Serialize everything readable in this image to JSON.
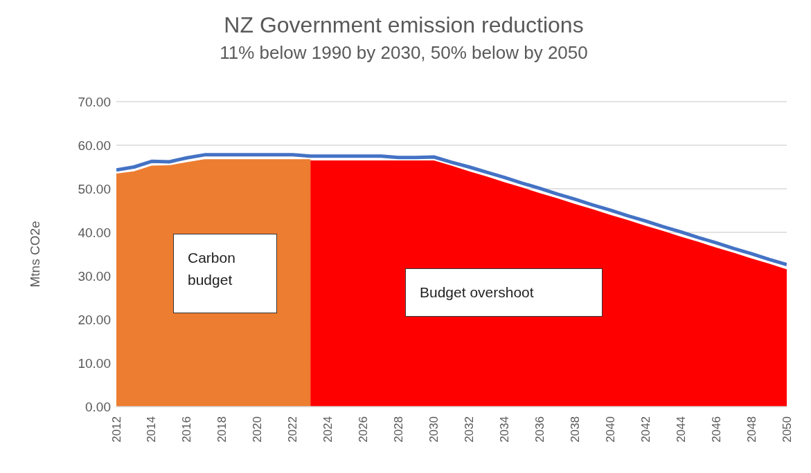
{
  "chart_data": {
    "type": "area",
    "title": "NZ Government emission reductions",
    "subtitle": "11% below 1990 by 2030, 50% below by 2050",
    "ylabel": "Mtns CO2e",
    "x": [
      2012,
      2013,
      2014,
      2015,
      2016,
      2017,
      2018,
      2019,
      2020,
      2021,
      2022,
      2023,
      2024,
      2025,
      2026,
      2027,
      2028,
      2029,
      2030,
      2031,
      2032,
      2033,
      2034,
      2035,
      2036,
      2037,
      2038,
      2039,
      2040,
      2041,
      2042,
      2043,
      2044,
      2045,
      2046,
      2047,
      2048,
      2049,
      2050
    ],
    "xlim": [
      2012,
      2050
    ],
    "xticks": [
      2012,
      2014,
      2016,
      2018,
      2020,
      2022,
      2024,
      2026,
      2028,
      2030,
      2032,
      2034,
      2036,
      2038,
      2040,
      2042,
      2044,
      2046,
      2048,
      2050
    ],
    "ylim": [
      0,
      70
    ],
    "yticks": [
      {
        "value": 0,
        "label": "0.00"
      },
      {
        "value": 10,
        "label": "10.00"
      },
      {
        "value": 20,
        "label": "20.00"
      },
      {
        "value": 30,
        "label": "30.00"
      },
      {
        "value": 40,
        "label": "40.00"
      },
      {
        "value": 50,
        "label": "50.00"
      },
      {
        "value": 60,
        "label": "60.00"
      },
      {
        "value": 70,
        "label": "70.00"
      }
    ],
    "grid": "y",
    "marker": "none",
    "line_style": "solid",
    "series": [
      {
        "color": "#ed7d31",
        "values": [
          53.5,
          54.0,
          55.3,
          55.4,
          56.1,
          56.8,
          56.8,
          56.8,
          56.8,
          56.8,
          56.8,
          56.8,
          null,
          null,
          null,
          null,
          null,
          null,
          null,
          null,
          null,
          null,
          null,
          null,
          null,
          null,
          null,
          null,
          null,
          null,
          null,
          null,
          null,
          null,
          null,
          null,
          null,
          null,
          null
        ]
      },
      {
        "color": "#ff0000",
        "values": [
          null,
          null,
          null,
          null,
          null,
          null,
          null,
          null,
          null,
          null,
          null,
          56.5,
          56.5,
          56.5,
          56.5,
          56.5,
          56.5,
          56.5,
          56.5,
          55.3,
          54.0,
          52.8,
          51.5,
          50.3,
          49.0,
          47.8,
          46.5,
          45.3,
          44.0,
          42.8,
          41.5,
          40.3,
          39.0,
          37.8,
          36.5,
          35.3,
          34.0,
          32.8,
          31.5
        ]
      },
      {
        "type": "line",
        "color": "#4472c4",
        "values": [
          54.3,
          55.0,
          56.3,
          56.2,
          57.1,
          57.8,
          57.8,
          57.8,
          57.8,
          57.8,
          57.8,
          57.5,
          57.5,
          57.5,
          57.5,
          57.5,
          57.2,
          57.2,
          57.3,
          56.1,
          55.0,
          53.8,
          52.6,
          51.3,
          50.1,
          48.8,
          47.6,
          46.3,
          45.1,
          43.8,
          42.6,
          41.3,
          40.1,
          38.8,
          37.6,
          36.3,
          35.1,
          33.8,
          32.6
        ]
      }
    ],
    "annotations": [
      "Carbon budget",
      "Budget overshoot"
    ]
  }
}
